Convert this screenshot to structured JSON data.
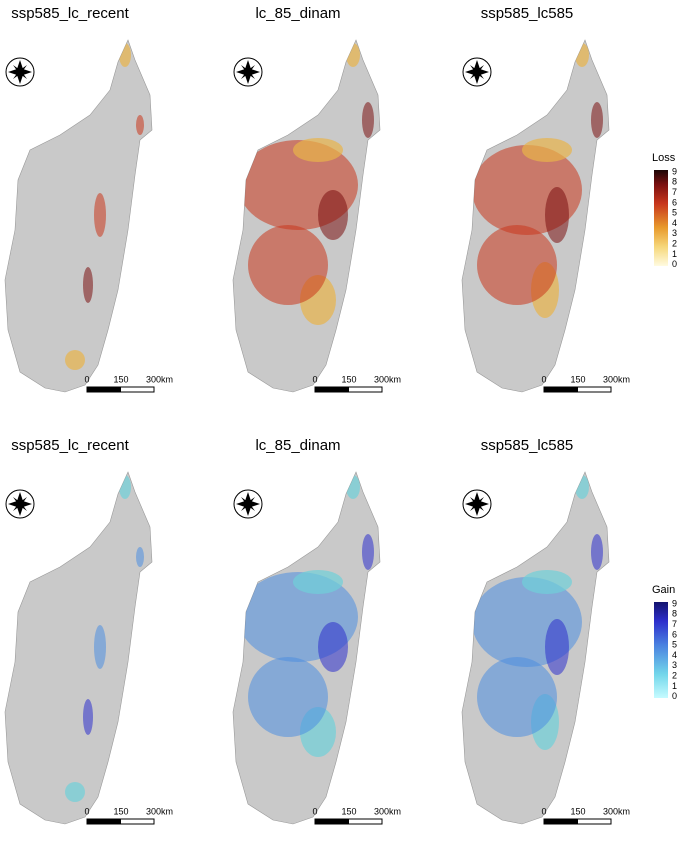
{
  "rows": [
    {
      "panels": [
        {
          "title": "ssp585_lc_recent",
          "scale": [
            "0",
            "150",
            "300km"
          ]
        },
        {
          "title": "lc_85_dinam",
          "scale": [
            "0",
            "150",
            "300km"
          ]
        },
        {
          "title": "ssp585_lc585",
          "scale": [
            "0",
            "150",
            "300km"
          ]
        }
      ],
      "legend": {
        "title": "Loss",
        "labels": [
          "9",
          "8",
          "7",
          "6",
          "5",
          "4",
          "3",
          "2",
          "1",
          "0"
        ]
      }
    },
    {
      "panels": [
        {
          "title": "ssp585_lc_recent",
          "scale": [
            "0",
            "150",
            "300km"
          ]
        },
        {
          "title": "lc_85_dinam",
          "scale": [
            "0",
            "150",
            "300km"
          ]
        },
        {
          "title": "ssp585_lc585",
          "scale": [
            "0",
            "150",
            "300km"
          ]
        }
      ],
      "legend": {
        "title": "Gain",
        "labels": [
          "9",
          "8",
          "7",
          "6",
          "5",
          "4",
          "3",
          "2",
          "1",
          "0"
        ]
      }
    }
  ]
}
